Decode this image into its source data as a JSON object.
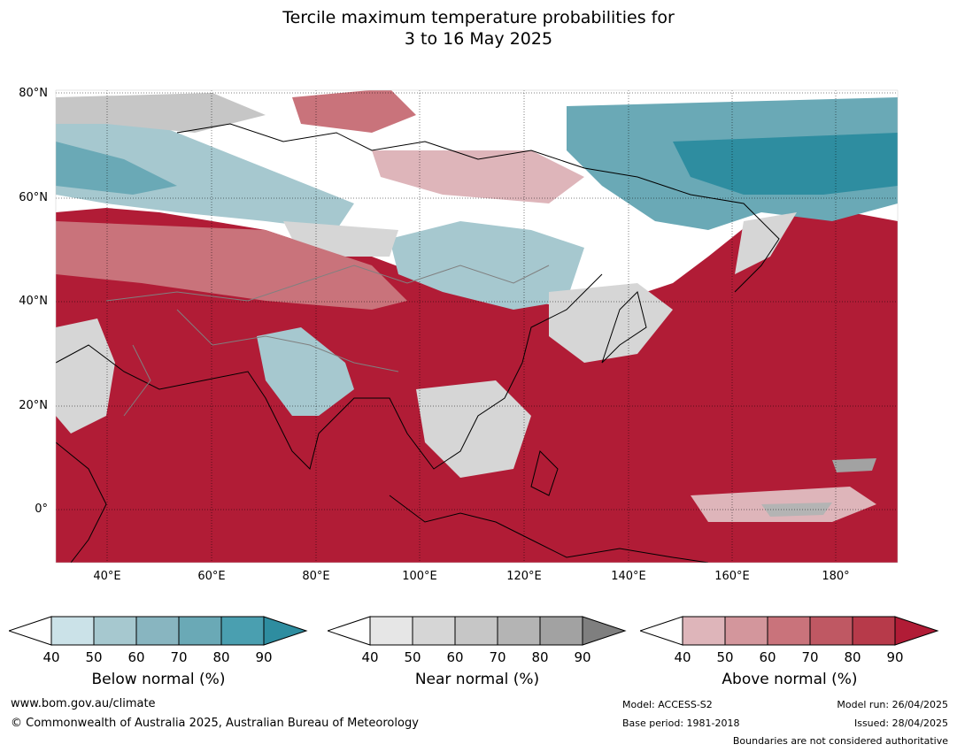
{
  "title": {
    "line1": "Tercile maximum temperature probabilities for",
    "line2": "3 to 16 May 2025"
  },
  "map": {
    "latitudes": [
      "80°N",
      "60°N",
      "40°N",
      "20°N",
      "0°"
    ],
    "longitudes": [
      "40°E",
      "60°E",
      "80°E",
      "100°E",
      "120°E",
      "140°E",
      "160°E",
      "180°"
    ],
    "colors": {
      "below": [
        "#cbe2e8",
        "#a6c8cf",
        "#88b5c0",
        "#6aa9b6",
        "#4a9fb0",
        "#2e8da0"
      ],
      "near": [
        "#e6e6e6",
        "#d6d6d6",
        "#c6c6c6",
        "#b4b4b4",
        "#a2a2a2",
        "#7f7f7f"
      ],
      "above": [
        "#deb5ba",
        "#d3969c",
        "#c9737b",
        "#bf5863",
        "#b73a4a",
        "#b11c36"
      ]
    }
  },
  "colorbars": [
    {
      "label": "Below normal (%)",
      "ticks": [
        "40",
        "50",
        "60",
        "70",
        "80",
        "90"
      ],
      "colors": [
        "#ffffff",
        "#cbe2e8",
        "#a6c8cf",
        "#88b5c0",
        "#6aa9b6",
        "#4a9fb0",
        "#2e8da0"
      ]
    },
    {
      "label": "Near normal (%)",
      "ticks": [
        "40",
        "50",
        "60",
        "70",
        "80",
        "90"
      ],
      "colors": [
        "#ffffff",
        "#e6e6e6",
        "#d6d6d6",
        "#c6c6c6",
        "#b4b4b4",
        "#a2a2a2",
        "#7f7f7f"
      ]
    },
    {
      "label": "Above normal (%)",
      "ticks": [
        "40",
        "50",
        "60",
        "70",
        "80",
        "90"
      ],
      "colors": [
        "#ffffff",
        "#deb5ba",
        "#d3969c",
        "#c9737b",
        "#bf5863",
        "#b73a4a",
        "#b11c36"
      ]
    }
  ],
  "footer": {
    "website": "www.bom.gov.au/climate",
    "copyright": "© Commonwealth of Australia 2025, Australian Bureau of Meteorology",
    "model": "Model: ACCESS-S2",
    "base_period": "Base period: 1981-2018",
    "model_run": "Model run: 26/04/2025",
    "issued": "Issued: 28/04/2025",
    "disclaimer": "Boundaries are not considered authoritative"
  }
}
